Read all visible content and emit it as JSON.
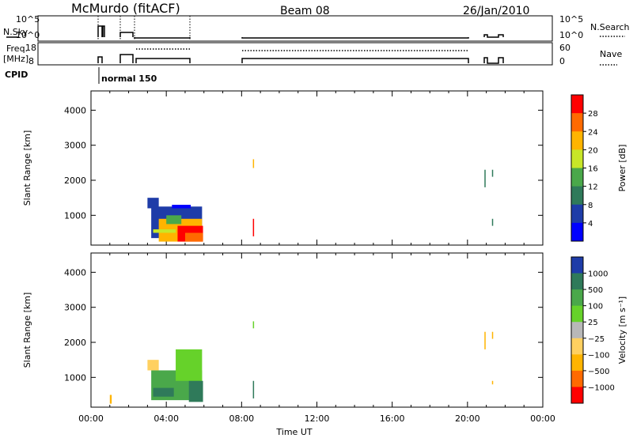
{
  "header": {
    "title": "McMurdo (fitACF)",
    "beam": "Beam 08",
    "date": "26/Jan/2010"
  },
  "status_panels": {
    "nsky_label": "N.Sky",
    "nsky_ticks": [
      "10^5",
      "10^0"
    ],
    "nsearch_label": "N.Search",
    "nsearch_ticks": [
      "10^5",
      "10^0"
    ],
    "freq_label_top": "Freq.",
    "freq_label_bottom": "[MHz]",
    "freq_ticks": [
      "18",
      "8"
    ],
    "nave_label": "Nave",
    "nave_ticks": [
      "60",
      "0"
    ],
    "cpid_label": "CPID",
    "cpid_text": "normal 150"
  },
  "chart_data": [
    {
      "type": "heatmap",
      "name": "power",
      "ylabel": "Slant Range [km]",
      "xlabel": "Time UT",
      "xticks": [
        "00:00",
        "04:00",
        "08:00",
        "12:00",
        "16:00",
        "20:00",
        "00:00"
      ],
      "yticks": [
        1000,
        2000,
        3000,
        4000
      ],
      "ylim": [
        150,
        4550
      ],
      "colorbar": {
        "label": "Power [dB]",
        "ticks": [
          "28",
          "24",
          "20",
          "16",
          "12",
          "8",
          "4"
        ],
        "colors": [
          "#ff0000",
          "#ff6a00",
          "#ffb400",
          "#c8e628",
          "#4aa84a",
          "#2f7a5a",
          "#1e3ca8",
          "#0000ff"
        ]
      },
      "patches": [
        {
          "t0": 3.2,
          "t1": 5.9,
          "r0": 350,
          "r1": 1250,
          "c": 6
        },
        {
          "t0": 3.6,
          "t1": 5.9,
          "r0": 250,
          "r1": 900,
          "c": 2
        },
        {
          "t0": 4.6,
          "t1": 5.95,
          "r0": 250,
          "r1": 700,
          "c": 0
        },
        {
          "t0": 5.0,
          "t1": 5.95,
          "r0": 250,
          "r1": 500,
          "c": 1
        },
        {
          "t0": 3.3,
          "t1": 4.5,
          "r0": 500,
          "r1": 600,
          "c": 3
        },
        {
          "t0": 4.0,
          "t1": 4.8,
          "r0": 750,
          "r1": 1000,
          "c": 4
        },
        {
          "t0": 3.0,
          "t1": 3.6,
          "r0": 1200,
          "r1": 1500,
          "c": 6
        },
        {
          "t0": 4.3,
          "t1": 5.3,
          "r0": 1200,
          "r1": 1300,
          "c": 7
        },
        {
          "t0": 8.6,
          "t1": 8.65,
          "r0": 400,
          "r1": 900,
          "c": 0
        },
        {
          "t0": 8.6,
          "t1": 8.65,
          "r0": 2350,
          "r1": 2600,
          "c": 2
        },
        {
          "t0": 21.3,
          "t1": 21.35,
          "r0": 700,
          "r1": 900,
          "c": 5
        },
        {
          "t0": 21.3,
          "t1": 21.35,
          "r0": 2100,
          "r1": 2300,
          "c": 5
        },
        {
          "t0": 20.9,
          "t1": 20.95,
          "r0": 1800,
          "r1": 2300,
          "c": 5
        }
      ]
    },
    {
      "type": "heatmap",
      "name": "velocity",
      "ylabel": "Slant Range [km]",
      "xlabel": "Time UT",
      "xticks": [
        "00:00",
        "04:00",
        "08:00",
        "12:00",
        "16:00",
        "20:00",
        "00:00"
      ],
      "yticks": [
        1000,
        2000,
        3000,
        4000
      ],
      "ylim": [
        150,
        4550
      ],
      "colorbar": {
        "label": "Velocity [m s⁻¹]",
        "ticks": [
          "1000",
          "500",
          "100",
          "25",
          "−25",
          "−100",
          "−500",
          "−1000"
        ],
        "colors": [
          "#1e3ca8",
          "#2f7a5a",
          "#4aa84a",
          "#66d22a",
          "#b8b8b8",
          "#ffd060",
          "#ffb400",
          "#ff6a00",
          "#ff0000"
        ]
      },
      "patches": [
        {
          "t0": 3.2,
          "t1": 5.9,
          "r0": 350,
          "r1": 1200,
          "c": 2
        },
        {
          "t0": 3.3,
          "t1": 4.4,
          "r0": 450,
          "r1": 700,
          "c": 1
        },
        {
          "t0": 4.5,
          "t1": 5.9,
          "r0": 900,
          "r1": 1800,
          "c": 3
        },
        {
          "t0": 5.2,
          "t1": 5.95,
          "r0": 300,
          "r1": 900,
          "c": 1
        },
        {
          "t0": 3.0,
          "t1": 3.6,
          "r0": 1200,
          "r1": 1500,
          "c": 5
        },
        {
          "t0": 1.0,
          "t1": 1.1,
          "r0": 250,
          "r1": 500,
          "c": 6
        },
        {
          "t0": 8.6,
          "t1": 8.65,
          "r0": 400,
          "r1": 900,
          "c": 1
        },
        {
          "t0": 8.6,
          "t1": 8.65,
          "r0": 2400,
          "r1": 2600,
          "c": 3
        },
        {
          "t0": 21.3,
          "t1": 21.35,
          "r0": 800,
          "r1": 900,
          "c": 6
        },
        {
          "t0": 21.3,
          "t1": 21.35,
          "r0": 2100,
          "r1": 2300,
          "c": 6
        },
        {
          "t0": 20.9,
          "t1": 20.95,
          "r0": 1800,
          "r1": 2300,
          "c": 6
        }
      ]
    }
  ]
}
